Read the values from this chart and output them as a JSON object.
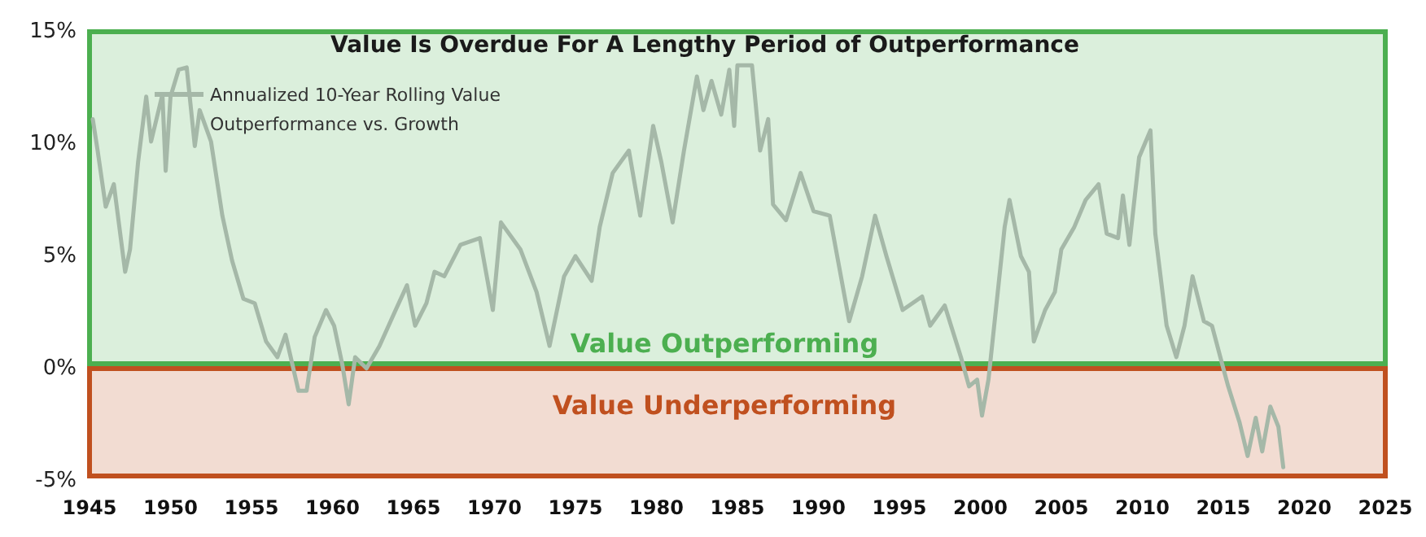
{
  "chart_data": {
    "type": "line",
    "title": "Value Is Overdue For A Lengthy Period of Outperformance",
    "x": [
      1945.2,
      1945.5,
      1946,
      1946.5,
      1947.2,
      1947.5,
      1948,
      1948.5,
      1948.8,
      1949.5,
      1949.7,
      1950,
      1950.5,
      1951,
      1951.5,
      1951.8,
      1952.5,
      1953.2,
      1953.8,
      1954.5,
      1955.2,
      1955.9,
      1956.6,
      1957.1,
      1957.9,
      1958.4,
      1958.9,
      1959.6,
      1960.1,
      1960.6,
      1961,
      1961.4,
      1962.1,
      1962.9,
      1963.9,
      1964.6,
      1965.1,
      1965.8,
      1966.3,
      1966.9,
      1967.9,
      1969.1,
      1969.9,
      1970.4,
      1971.6,
      1972.6,
      1973.4,
      1974.3,
      1975,
      1976,
      1976.5,
      1977.3,
      1978.3,
      1979,
      1979.8,
      1980.3,
      1981,
      1981.7,
      1982.5,
      1982.9,
      1983.4,
      1984,
      1984.5,
      1984.8,
      1985,
      1985.9,
      1986.4,
      1986.9,
      1987.2,
      1988,
      1988.9,
      1989.7,
      1990.7,
      1991.9,
      1992.7,
      1993.5,
      1994.2,
      1995.2,
      1996.4,
      1996.9,
      1997.8,
      1998.8,
      1999.3,
      1999.8,
      2000.1,
      2000.5,
      2001,
      2001.5,
      2001.8,
      2002.5,
      2003,
      2003.3,
      2004,
      2004.6,
      2005,
      2005.8,
      2006.5,
      2007.3,
      2007.8,
      2008.5,
      2008.8,
      2009.2,
      2009.8,
      2010.5,
      2010.8,
      2011.5,
      2012.1,
      2012.6,
      2013.1,
      2013.8,
      2014.3,
      2015,
      2015.3,
      2016,
      2016.5,
      2017,
      2017.4,
      2017.9,
      2018.4,
      2018.7
    ],
    "series": [
      {
        "name": "Annualized 10-Year Rolling Value Outperformance vs. Growth",
        "color": "#a5b8a8",
        "values": [
          11.0,
          9.6,
          7.1,
          8.1,
          4.2,
          5.2,
          9.1,
          12.0,
          10.0,
          12.1,
          8.7,
          12.0,
          13.2,
          13.3,
          9.8,
          11.4,
          10.0,
          6.7,
          4.7,
          3.0,
          2.8,
          1.1,
          0.4,
          1.4,
          -1.1,
          -1.1,
          1.3,
          2.5,
          1.8,
          0.1,
          -1.7,
          0.4,
          -0.1,
          0.9,
          2.5,
          3.6,
          1.8,
          2.8,
          4.2,
          4.0,
          5.4,
          5.7,
          2.5,
          6.4,
          5.2,
          3.3,
          0.9,
          4.0,
          4.9,
          3.8,
          6.2,
          8.6,
          9.6,
          6.7,
          10.7,
          9.1,
          6.4,
          9.6,
          12.9,
          11.4,
          12.7,
          11.2,
          13.2,
          10.7,
          13.4,
          13.4,
          9.6,
          11.0,
          7.2,
          6.5,
          8.6,
          6.9,
          6.7,
          2.0,
          4.0,
          6.7,
          4.9,
          2.5,
          3.1,
          1.8,
          2.7,
          0.4,
          -0.9,
          -0.6,
          -2.2,
          -0.6,
          2.8,
          6.2,
          7.4,
          4.9,
          4.2,
          1.1,
          2.5,
          3.3,
          5.2,
          6.2,
          7.4,
          8.1,
          5.9,
          5.7,
          7.6,
          5.4,
          9.3,
          10.5,
          5.9,
          1.8,
          0.4,
          1.8,
          4.0,
          2.0,
          1.8,
          -0.1,
          -0.9,
          -2.5,
          -4.0,
          -2.3,
          -3.8,
          -1.8,
          -2.7,
          -4.5
        ]
      }
    ],
    "xlim": [
      1945,
      2025
    ],
    "xticks": [
      1945,
      1950,
      1955,
      1960,
      1965,
      1970,
      1975,
      1980,
      1985,
      1990,
      1995,
      2000,
      2005,
      2010,
      2015,
      2020,
      2025
    ],
    "ylim": [
      -5,
      15
    ],
    "yticks": [
      {
        "value": -5,
        "label": "-5%"
      },
      {
        "value": 0,
        "label": "0%"
      },
      {
        "value": 5,
        "label": "5%"
      },
      {
        "value": 10,
        "label": "10%"
      },
      {
        "value": 15,
        "label": "15%"
      }
    ],
    "bands": [
      {
        "axis": "y",
        "from": 0,
        "to": 15,
        "label": "Value Outperforming",
        "color": "#4caf50"
      },
      {
        "axis": "y",
        "from": -5,
        "to": 0,
        "label": "Value Underperforming",
        "color": "#c0501f"
      }
    ],
    "legend": "top left",
    "grid": false,
    "line_style": "solid",
    "marker": "none"
  }
}
